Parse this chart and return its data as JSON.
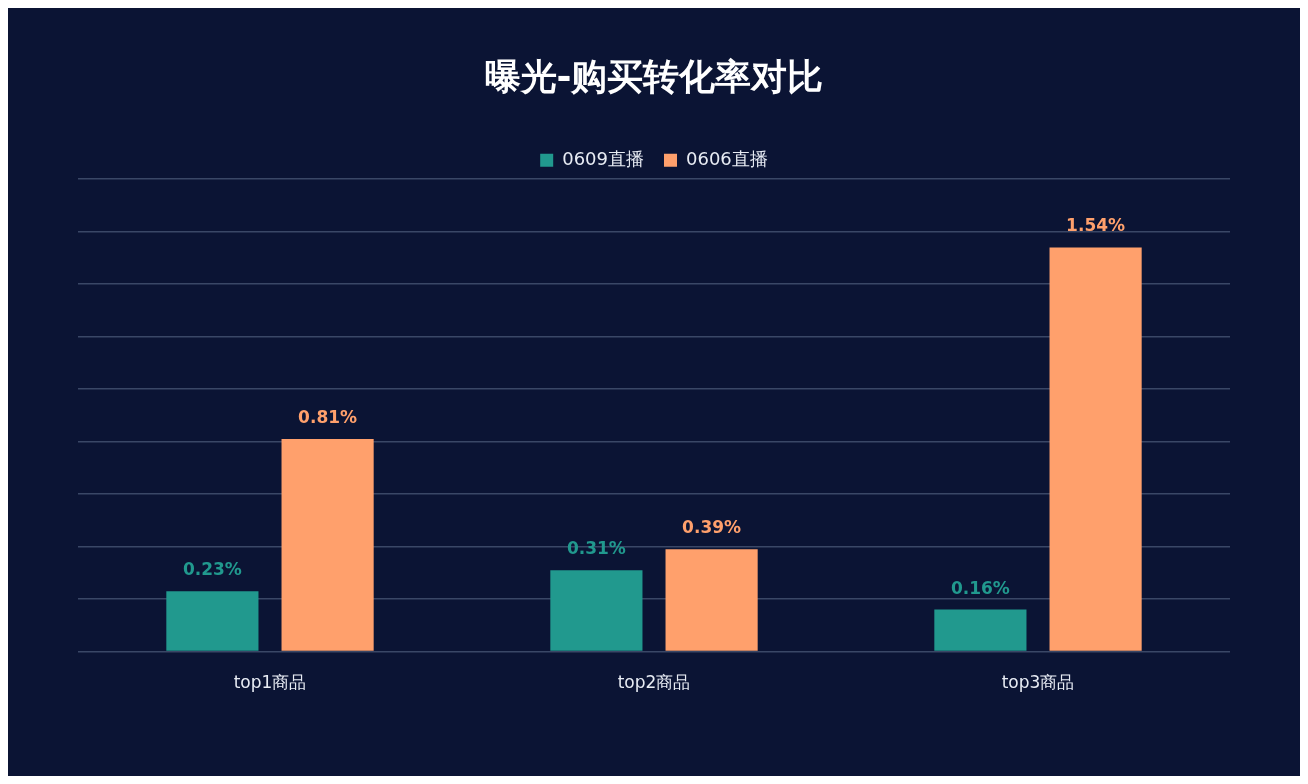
{
  "chart_data": {
    "type": "bar",
    "title": "曝光-购买转化率对比",
    "categories": [
      "top1商品",
      "top2商品",
      "top3商品"
    ],
    "series": [
      {
        "name": "0609直播",
        "color": "#21998e",
        "values": [
          0.23,
          0.31,
          0.16
        ],
        "value_labels": [
          "0.23%",
          "0.31%",
          "0.16%"
        ]
      },
      {
        "name": "0606直播",
        "color": "#ffa06c",
        "values": [
          0.81,
          0.39,
          1.54
        ],
        "value_labels": [
          "0.81%",
          "0.39%",
          "1.54%"
        ]
      }
    ],
    "ylim": [
      0,
      1.8
    ],
    "yticks": [
      {
        "value": 0,
        "label": null
      },
      {
        "value": 0.2,
        "label": null
      },
      {
        "value": 0.4,
        "label": null
      },
      {
        "value": 0.6,
        "label": null
      },
      {
        "value": 0.8,
        "label": null
      },
      {
        "value": 1,
        "label": null
      },
      {
        "value": 1.2,
        "label": null
      },
      {
        "value": 1.4,
        "label": null
      },
      {
        "value": 1.6,
        "label": null
      },
      {
        "value": 1.8,
        "label": null
      }
    ],
    "grid": "y",
    "legend": "top",
    "tick_labels": "x"
  }
}
